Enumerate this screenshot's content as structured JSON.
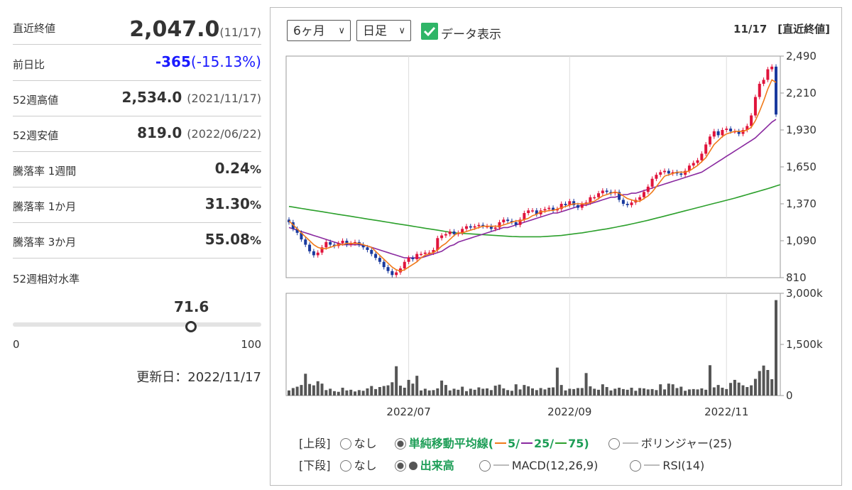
{
  "stats": {
    "close": {
      "label": "直近終値",
      "value": "2,047.0",
      "sub": "(11/17)"
    },
    "change": {
      "label": "前日比",
      "value": "-365",
      "sub": "(-15.13%)"
    },
    "high52": {
      "label": "52週高値",
      "value": "2,534.0",
      "sub": "(2021/11/17)"
    },
    "low52": {
      "label": "52週安値",
      "value": "819.0",
      "sub": "(2022/06/22)"
    },
    "w1": {
      "label": "騰落率 1週間",
      "value": "0.24",
      "pct": "%"
    },
    "m1": {
      "label": "騰落率 1か月",
      "value": "31.30",
      "pct": "%"
    },
    "m3": {
      "label": "騰落率 3か月",
      "value": "55.08",
      "pct": "%"
    }
  },
  "gauge": {
    "label": "52週相対水準",
    "value": "71.6",
    "level": 71.6,
    "min": "0",
    "max": "100"
  },
  "updated": "更新日：2022/11/17",
  "controls": {
    "period": "6ヶ月",
    "interval": "日足",
    "show_data": "データ表示",
    "date_label": "11/17　[直近終値]"
  },
  "options": {
    "upper_label": "[上段]",
    "lower_label": "[下段]",
    "none": "なし",
    "sma": "単純移動平均線(",
    "sma5": "5/",
    "sma25": "25/",
    "sma75": "75)",
    "bollinger": "ボリンジャー(25)",
    "volume": "出来高",
    "macd": "MACD(12,26,9)",
    "rsi": "RSI(14)"
  },
  "colors": {
    "up": "#e0143c",
    "down": "#1a3a9e",
    "ma5": "#f07a1a",
    "ma25": "#8a2aa0",
    "ma75": "#2ca02c",
    "volume": "#555555",
    "check": "#2fb567"
  },
  "chart_data": {
    "type": "candlestick",
    "x_ticks": [
      "2022/07",
      "2022/09",
      "2022/11"
    ],
    "price_ticks": [
      "2,490",
      "2,210",
      "1,930",
      "1,650",
      "1,370",
      "1,090",
      "810"
    ],
    "price_ylim": [
      810,
      2490
    ],
    "volume_ticks": [
      "3,000k",
      "1,500k",
      "0"
    ],
    "volume_ylim": [
      0,
      3000
    ],
    "close": [
      1230,
      1180,
      1150,
      1100,
      1060,
      1010,
      980,
      1000,
      1040,
      1080,
      1060,
      1050,
      1070,
      1090,
      1060,
      1070,
      1080,
      1060,
      1040,
      1020,
      990,
      960,
      930,
      890,
      860,
      830,
      850,
      880,
      930,
      960,
      950,
      990,
      990,
      1000,
      1000,
      1020,
      1110,
      1130,
      1140,
      1160,
      1140,
      1150,
      1180,
      1200,
      1190,
      1200,
      1210,
      1200,
      1200,
      1180,
      1190,
      1230,
      1250,
      1240,
      1230,
      1210,
      1250,
      1300,
      1320,
      1320,
      1290,
      1320,
      1330,
      1340,
      1320,
      1330,
      1370,
      1360,
      1390,
      1360,
      1340,
      1370,
      1380,
      1420,
      1420,
      1450,
      1470,
      1460,
      1450,
      1460,
      1400,
      1370,
      1360,
      1380,
      1400,
      1420,
      1460,
      1500,
      1560,
      1590,
      1610,
      1620,
      1600,
      1610,
      1600,
      1590,
      1620,
      1660,
      1680,
      1700,
      1750,
      1820,
      1880,
      1920,
      1890,
      1930,
      1940,
      1920,
      1920,
      1900,
      1930,
      1960,
      2040,
      2180,
      2280,
      2310,
      2390,
      2410,
      2047
    ],
    "ma5": [
      1240,
      1210,
      1180,
      1150,
      1120,
      1090,
      1060,
      1040,
      1030,
      1030,
      1040,
      1050,
      1060,
      1060,
      1070,
      1070,
      1070,
      1070,
      1060,
      1050,
      1040,
      1010,
      980,
      950,
      920,
      890,
      870,
      860,
      870,
      890,
      910,
      930,
      960,
      980,
      990,
      1000,
      1020,
      1050,
      1070,
      1100,
      1130,
      1150,
      1150,
      1160,
      1170,
      1180,
      1190,
      1200,
      1200,
      1200,
      1200,
      1200,
      1210,
      1220,
      1230,
      1240,
      1240,
      1250,
      1260,
      1280,
      1290,
      1310,
      1310,
      1320,
      1320,
      1330,
      1340,
      1350,
      1360,
      1370,
      1370,
      1370,
      1370,
      1380,
      1390,
      1410,
      1430,
      1440,
      1450,
      1460,
      1450,
      1430,
      1410,
      1400,
      1390,
      1390,
      1410,
      1430,
      1460,
      1500,
      1540,
      1580,
      1590,
      1600,
      1610,
      1610,
      1610,
      1620,
      1640,
      1660,
      1690,
      1720,
      1770,
      1820,
      1850,
      1880,
      1900,
      1910,
      1920,
      1920,
      1920,
      1930,
      1950,
      2000,
      2070,
      2150,
      2240,
      2310,
      2290
    ],
    "ma25": [
      1190,
      1180,
      1170,
      1160,
      1150,
      1140,
      1130,
      1120,
      1110,
      1100,
      1090,
      1080,
      1070,
      1060,
      1060,
      1060,
      1060,
      1060,
      1055,
      1050,
      1040,
      1030,
      1020,
      1010,
      1000,
      990,
      980,
      970,
      960,
      960,
      960,
      960,
      960,
      970,
      980,
      990,
      1000,
      1010,
      1030,
      1050,
      1060,
      1080,
      1090,
      1100,
      1110,
      1120,
      1130,
      1140,
      1150,
      1160,
      1170,
      1180,
      1190,
      1190,
      1200,
      1210,
      1220,
      1230,
      1240,
      1250,
      1260,
      1270,
      1280,
      1290,
      1300,
      1300,
      1310,
      1320,
      1330,
      1340,
      1350,
      1360,
      1360,
      1370,
      1380,
      1390,
      1400,
      1410,
      1420,
      1420,
      1430,
      1440,
      1440,
      1450,
      1450,
      1460,
      1470,
      1480,
      1490,
      1500,
      1510,
      1520,
      1530,
      1540,
      1550,
      1560,
      1570,
      1580,
      1590,
      1600,
      1610,
      1630,
      1650,
      1670,
      1690,
      1710,
      1730,
      1750,
      1770,
      1790,
      1810,
      1830,
      1850,
      1870,
      1900,
      1930,
      1960,
      1990,
      2010
    ],
    "ma75": [
      1350,
      1345,
      1340,
      1335,
      1330,
      1325,
      1320,
      1315,
      1310,
      1305,
      1300,
      1295,
      1290,
      1285,
      1280,
      1275,
      1270,
      1265,
      1260,
      1255,
      1250,
      1245,
      1240,
      1235,
      1230,
      1225,
      1220,
      1215,
      1210,
      1205,
      1200,
      1195,
      1190,
      1185,
      1180,
      1175,
      1170,
      1165,
      1160,
      1155,
      1150,
      1148,
      1146,
      1144,
      1142,
      1140,
      1138,
      1136,
      1134,
      1132,
      1130,
      1128,
      1126,
      1124,
      1122,
      1121,
      1120,
      1120,
      1120,
      1120,
      1120,
      1120,
      1122,
      1124,
      1126,
      1128,
      1130,
      1134,
      1138,
      1142,
      1146,
      1150,
      1155,
      1160,
      1165,
      1170,
      1175,
      1180,
      1186,
      1192,
      1198,
      1204,
      1210,
      1217,
      1224,
      1231,
      1238,
      1245,
      1253,
      1261,
      1269,
      1277,
      1285,
      1293,
      1301,
      1309,
      1317,
      1325,
      1333,
      1341,
      1349,
      1357,
      1365,
      1373,
      1381,
      1389,
      1397,
      1405,
      1413,
      1422,
      1431,
      1440,
      1449,
      1458,
      1467,
      1476,
      1485,
      1495,
      1505,
      1515
    ],
    "volume": [
      150,
      220,
      260,
      310,
      640,
      340,
      300,
      420,
      350,
      160,
      200,
      130,
      110,
      230,
      150,
      170,
      120,
      160,
      140,
      210,
      280,
      190,
      250,
      280,
      300,
      390,
      860,
      290,
      230,
      460,
      350,
      580,
      150,
      200,
      150,
      160,
      210,
      440,
      310,
      150,
      200,
      170,
      260,
      130,
      200,
      170,
      240,
      200,
      210,
      160,
      290,
      320,
      210,
      160,
      140,
      330,
      180,
      310,
      270,
      210,
      160,
      220,
      180,
      230,
      240,
      820,
      310,
      150,
      200,
      190,
      220,
      220,
      660,
      270,
      200,
      170,
      330,
      250,
      150,
      200,
      230,
      190,
      170,
      230,
      140,
      220,
      210,
      180,
      190,
      160,
      330,
      180,
      350,
      330,
      220,
      260,
      140,
      180,
      190,
      180,
      210,
      170,
      890,
      240,
      310,
      230,
      190,
      370,
      460,
      380,
      300,
      250,
      300,
      490,
      720,
      880,
      750,
      480,
      2800
    ]
  }
}
